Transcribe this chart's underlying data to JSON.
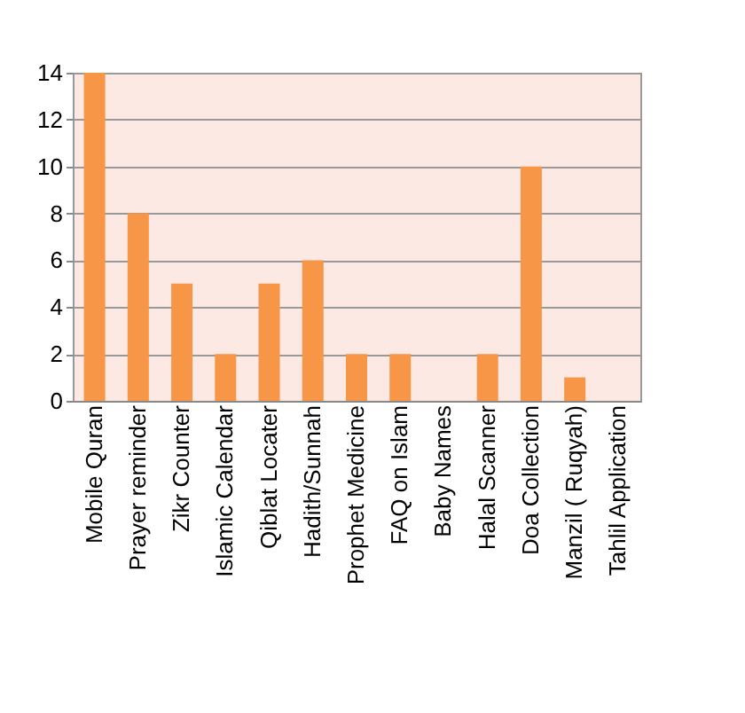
{
  "chart_data": {
    "type": "bar",
    "categories": [
      "Mobile Quran",
      "Prayer reminder",
      "Zikr Counter",
      "Islamic Calendar",
      "Qiblat Locater",
      "Hadith/Sunnah",
      "Prophet Medicine",
      "FAQ on Islam",
      "Baby Names",
      "Halal Scanner",
      "Doa Collection",
      "Manzil ( Ruqyah)",
      "Tahlil Application"
    ],
    "values": [
      14,
      8,
      5,
      2,
      5,
      6,
      2,
      2,
      0,
      2,
      10,
      1,
      0
    ],
    "color": "#f79646",
    "ylim": [
      0,
      14
    ],
    "yticks": [
      0,
      2,
      4,
      6,
      8,
      10,
      12,
      14
    ],
    "grid": "y"
  }
}
